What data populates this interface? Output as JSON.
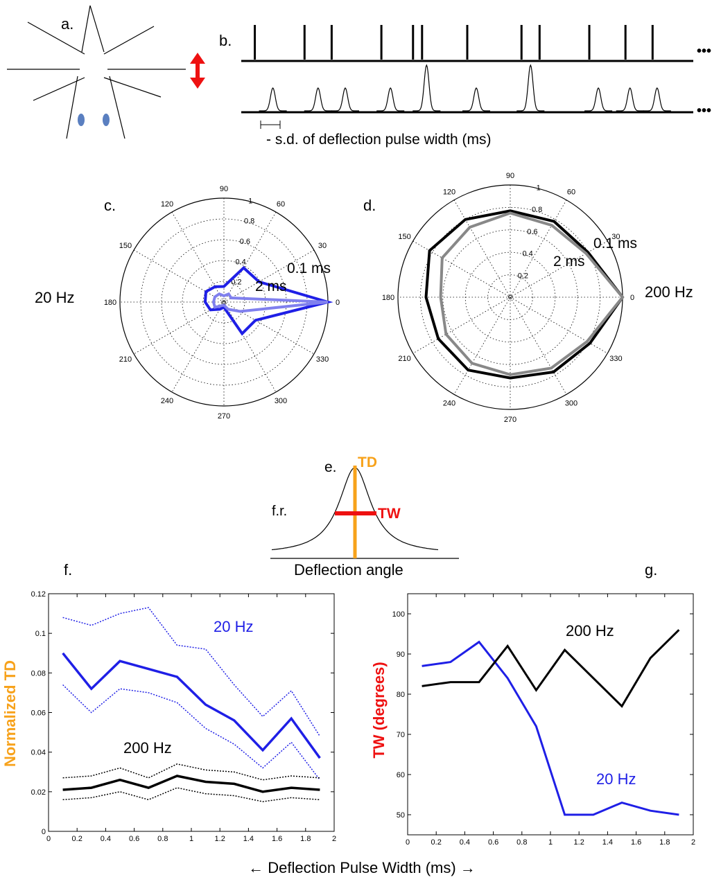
{
  "panel_labels": {
    "a": "a.",
    "b": "b.",
    "c": "c.",
    "d": "d.",
    "e": "e.",
    "f": "f.",
    "g": "g."
  },
  "colors": {
    "blue": "#1f1fe6",
    "light_blue": "#8080ee",
    "black": "#000000",
    "gray": "#888888",
    "orange": "#f7a21b",
    "red": "#ee1111",
    "ellipse": "#5a7fc0"
  },
  "panel_b": {
    "ellipsis": "•••",
    "sd_label": "- s.d. of deflection pulse width (ms)",
    "spike_x_positions": [
      0.03,
      0.14,
      0.2,
      0.31,
      0.38,
      0.4,
      0.5,
      0.62,
      0.66,
      0.77,
      0.85,
      0.91
    ],
    "pulse_events": [
      {
        "x": 0.07,
        "h": 0.5
      },
      {
        "x": 0.17,
        "h": 0.5
      },
      {
        "x": 0.23,
        "h": 0.5
      },
      {
        "x": 0.33,
        "h": 0.5
      },
      {
        "x": 0.41,
        "h": 1
      },
      {
        "x": 0.52,
        "h": 0.5
      },
      {
        "x": 0.64,
        "h": 1
      },
      {
        "x": 0.79,
        "h": 0.5
      },
      {
        "x": 0.86,
        "h": 0.5
      },
      {
        "x": 0.92,
        "h": 0.5
      }
    ]
  },
  "polar_ticks": {
    "angles": [
      "0",
      "30",
      "60",
      "90",
      "120",
      "150",
      "180",
      "210",
      "240",
      "270",
      "300",
      "330"
    ],
    "radial": [
      "0.2",
      "0.4",
      "0.6",
      "0.8",
      "1"
    ]
  },
  "panel_c": {
    "freq_label": "20 Hz",
    "label_01": "0.1 ms",
    "label_2": "2 ms",
    "chart_data": {
      "type": "polar",
      "angles_deg": [
        0,
        30,
        60,
        90,
        120,
        150,
        180,
        210,
        240,
        270,
        300,
        330
      ],
      "rlim": [
        0,
        1
      ],
      "series": [
        {
          "name": "0.1 ms",
          "r": [
            1.0,
            0.39,
            0.38,
            0.15,
            0.17,
            0.2,
            0.18,
            0.15,
            0.08,
            0.05,
            0.35,
            0.35
          ]
        },
        {
          "name": "2 ms",
          "r": [
            1.0,
            0.08,
            0.09,
            0.06,
            0.09,
            0.1,
            0.1,
            0.1,
            0.04,
            0.03,
            0.08,
            0.18
          ]
        }
      ]
    }
  },
  "panel_d": {
    "freq_label": "200 Hz",
    "label_01": "0.1 ms",
    "label_2": "2 ms",
    "chart_data": {
      "type": "polar",
      "angles_deg": [
        0,
        30,
        60,
        90,
        120,
        150,
        180,
        210,
        240,
        270,
        300,
        330
      ],
      "rlim": [
        0,
        1
      ],
      "series": [
        {
          "name": "0.1 ms",
          "r": [
            1.0,
            0.8,
            0.78,
            0.77,
            0.8,
            0.83,
            0.75,
            0.74,
            0.75,
            0.72,
            0.77,
            0.82
          ]
        },
        {
          "name": "2 ms",
          "r": [
            1.0,
            0.78,
            0.74,
            0.75,
            0.72,
            0.7,
            0.62,
            0.66,
            0.68,
            0.69,
            0.73,
            0.79
          ]
        }
      ]
    }
  },
  "panel_e": {
    "td": "TD",
    "tw": "TW",
    "fr": "f.r.",
    "xlabel": "Deflection angle"
  },
  "panel_f": {
    "ylabel": "Normalized TD",
    "label_20": "20 Hz",
    "label_200": "200 Hz",
    "chart_data": {
      "type": "line",
      "xlim": [
        0,
        2
      ],
      "ylim": [
        0,
        0.12
      ],
      "xticks": [
        "0",
        "0.2",
        "0.4",
        "0.6",
        "0.8",
        "1",
        "1.2",
        "1.4",
        "1.6",
        "1.8",
        "2"
      ],
      "yticks": [
        "0",
        "0.02",
        "0.04",
        "0.06",
        "0.08",
        "0.1",
        "0.12"
      ],
      "x": [
        0.1,
        0.3,
        0.5,
        0.7,
        0.9,
        1.1,
        1.3,
        1.5,
        1.7,
        1.9
      ],
      "series": [
        {
          "name": "20 Hz",
          "values": [
            0.09,
            0.072,
            0.086,
            0.082,
            0.078,
            0.064,
            0.056,
            0.041,
            0.057,
            0.037
          ]
        },
        {
          "name": "20 Hz upper",
          "values": [
            0.108,
            0.104,
            0.11,
            0.113,
            0.094,
            0.092,
            0.074,
            0.058,
            0.071,
            0.048
          ]
        },
        {
          "name": "20 Hz lower",
          "values": [
            0.074,
            0.06,
            0.072,
            0.07,
            0.065,
            0.052,
            0.044,
            0.032,
            0.045,
            0.026
          ]
        },
        {
          "name": "200 Hz",
          "values": [
            0.021,
            0.022,
            0.026,
            0.022,
            0.028,
            0.025,
            0.024,
            0.02,
            0.022,
            0.021
          ]
        },
        {
          "name": "200 Hz upper",
          "values": [
            0.027,
            0.028,
            0.032,
            0.027,
            0.034,
            0.031,
            0.03,
            0.026,
            0.028,
            0.027
          ]
        },
        {
          "name": "200 Hz lower",
          "values": [
            0.016,
            0.017,
            0.02,
            0.016,
            0.022,
            0.019,
            0.018,
            0.015,
            0.017,
            0.016
          ]
        }
      ]
    }
  },
  "panel_g": {
    "ylabel": "TW (degrees)",
    "label_20": "20 Hz",
    "label_200": "200 Hz",
    "chart_data": {
      "type": "line",
      "xlim": [
        0,
        2
      ],
      "ylim": [
        45,
        105
      ],
      "xticks": [
        "0",
        "0.2",
        "0.4",
        "0.6",
        "0.8",
        "1",
        "1.2",
        "1.4",
        "1.6",
        "1.8",
        "2"
      ],
      "yticks": [
        "50",
        "60",
        "70",
        "80",
        "90",
        "100"
      ],
      "x": [
        0.1,
        0.3,
        0.5,
        0.7,
        0.9,
        1.1,
        1.3,
        1.5,
        1.7,
        1.9
      ],
      "series": [
        {
          "name": "20 Hz",
          "values": [
            87,
            88,
            93,
            84,
            72,
            50,
            50,
            53,
            51,
            50
          ]
        },
        {
          "name": "200 Hz",
          "values": [
            82,
            83,
            83,
            92,
            81,
            91,
            84,
            77,
            89,
            96
          ]
        }
      ]
    }
  },
  "shared_xlabel": "← Deflection Pulse Width (ms) →"
}
